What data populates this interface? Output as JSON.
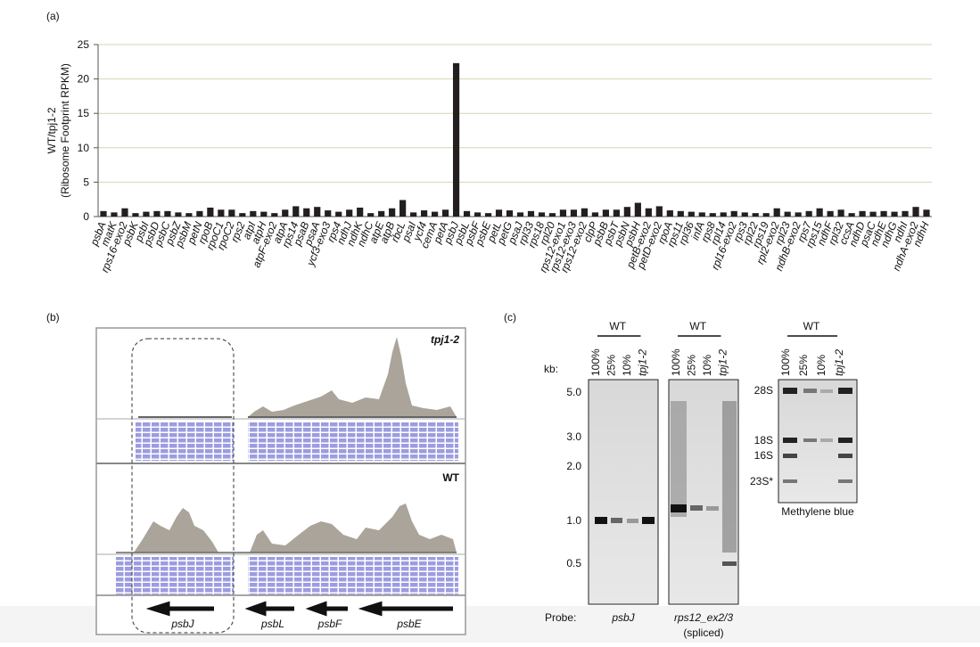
{
  "chart_data": {
    "type": "bar",
    "panel_label": "(a)",
    "y_label": [
      "WT/tpj1-2",
      "(Ribosome Footprint RPKM)"
    ],
    "categories": [
      "psbA",
      "matK",
      "rps16-exo2",
      "psbK",
      "psbI",
      "psbD",
      "psbC",
      "psbZ",
      "psbM",
      "petN",
      "rpoB",
      "rpoC1",
      "rpoC2",
      "rps2",
      "atpI",
      "atpH",
      "atpF-exo2",
      "atpA",
      "rps14",
      "psaB",
      "psaA",
      "ycf3-exo3",
      "rps4",
      "ndhJ",
      "ndhK",
      "ndhC",
      "atpE",
      "atpB",
      "rbcL",
      "psaI",
      "ycf4",
      "cemA",
      "petA",
      "psbJ",
      "psbL",
      "psbF",
      "psbE",
      "petL",
      "petG",
      "psaJ",
      "rpl33",
      "rps18",
      "rpl20",
      "rps12-exo1",
      "rps12-exo3",
      "rps12-exo2",
      "clpP",
      "psbB",
      "psbT",
      "psbN",
      "psbH",
      "petB-exo2",
      "petD-exo2",
      "rpoA",
      "rps11",
      "rpl36",
      "infA",
      "rps8",
      "rpl14",
      "rpl16-exo2",
      "rps3",
      "rpl22",
      "rps19",
      "rpl2-exo2",
      "rpl23",
      "ndhB-exo2",
      "rps7",
      "rps15",
      "ndhF",
      "rpl32",
      "ccsA",
      "ndhD",
      "psaC",
      "ndhE",
      "ndhG",
      "ndhI",
      "ndhA-exo2",
      "ndhH"
    ],
    "values": [
      0.8,
      0.6,
      1.2,
      0.5,
      0.7,
      0.8,
      0.8,
      0.6,
      0.5,
      0.8,
      1.3,
      1.0,
      1.0,
      0.5,
      0.8,
      0.7,
      0.5,
      1.0,
      1.5,
      1.2,
      1.4,
      0.9,
      0.7,
      1.0,
      1.3,
      0.5,
      0.8,
      1.2,
      2.4,
      0.6,
      0.9,
      0.7,
      1.0,
      22.3,
      0.8,
      0.6,
      0.5,
      1.0,
      0.9,
      0.6,
      0.8,
      0.6,
      0.5,
      1.0,
      1.0,
      1.2,
      0.6,
      1.0,
      1.0,
      1.4,
      2.0,
      1.2,
      1.5,
      0.9,
      0.8,
      0.7,
      0.6,
      0.5,
      0.6,
      0.8,
      0.6,
      0.5,
      0.5,
      1.2,
      0.7,
      0.6,
      0.8,
      1.2,
      0.8,
      1.0,
      0.5,
      0.8,
      0.7,
      0.8,
      0.7,
      0.8,
      1.4,
      1.0
    ],
    "color": "#231f20",
    "ylim": [
      0,
      25
    ],
    "yticks": [
      0,
      5,
      10,
      15,
      20,
      25
    ],
    "grid": true
  },
  "panel_b": {
    "label": "(b)",
    "tracks": [
      "tpj1-2",
      "WT"
    ],
    "genes": [
      "psbJ",
      "psbL",
      "psbF",
      "psbE"
    ]
  },
  "panel_c": {
    "label": "(c)",
    "kb_label": "kb:",
    "sizes": [
      "5.0",
      "3.0",
      "2.0",
      "1.0",
      "0.5"
    ],
    "blots": [
      {
        "group": "WT",
        "lanes": [
          "100%",
          "25%",
          "10%",
          "tpj1-2"
        ],
        "probe": "psbJ"
      },
      {
        "group": "WT",
        "lanes": [
          "100%",
          "25%",
          "10%",
          "tpj1-2"
        ],
        "probe": "rps12_ex2/3",
        "probe_note": "(spliced)"
      },
      {
        "group": "WT",
        "lanes": [
          "100%",
          "25%",
          "10%",
          "tpj1-2"
        ]
      }
    ],
    "rrna": [
      "28S",
      "18S",
      "16S",
      "23S*"
    ],
    "stain": "Methylene blue",
    "probe_label": "Probe:"
  }
}
